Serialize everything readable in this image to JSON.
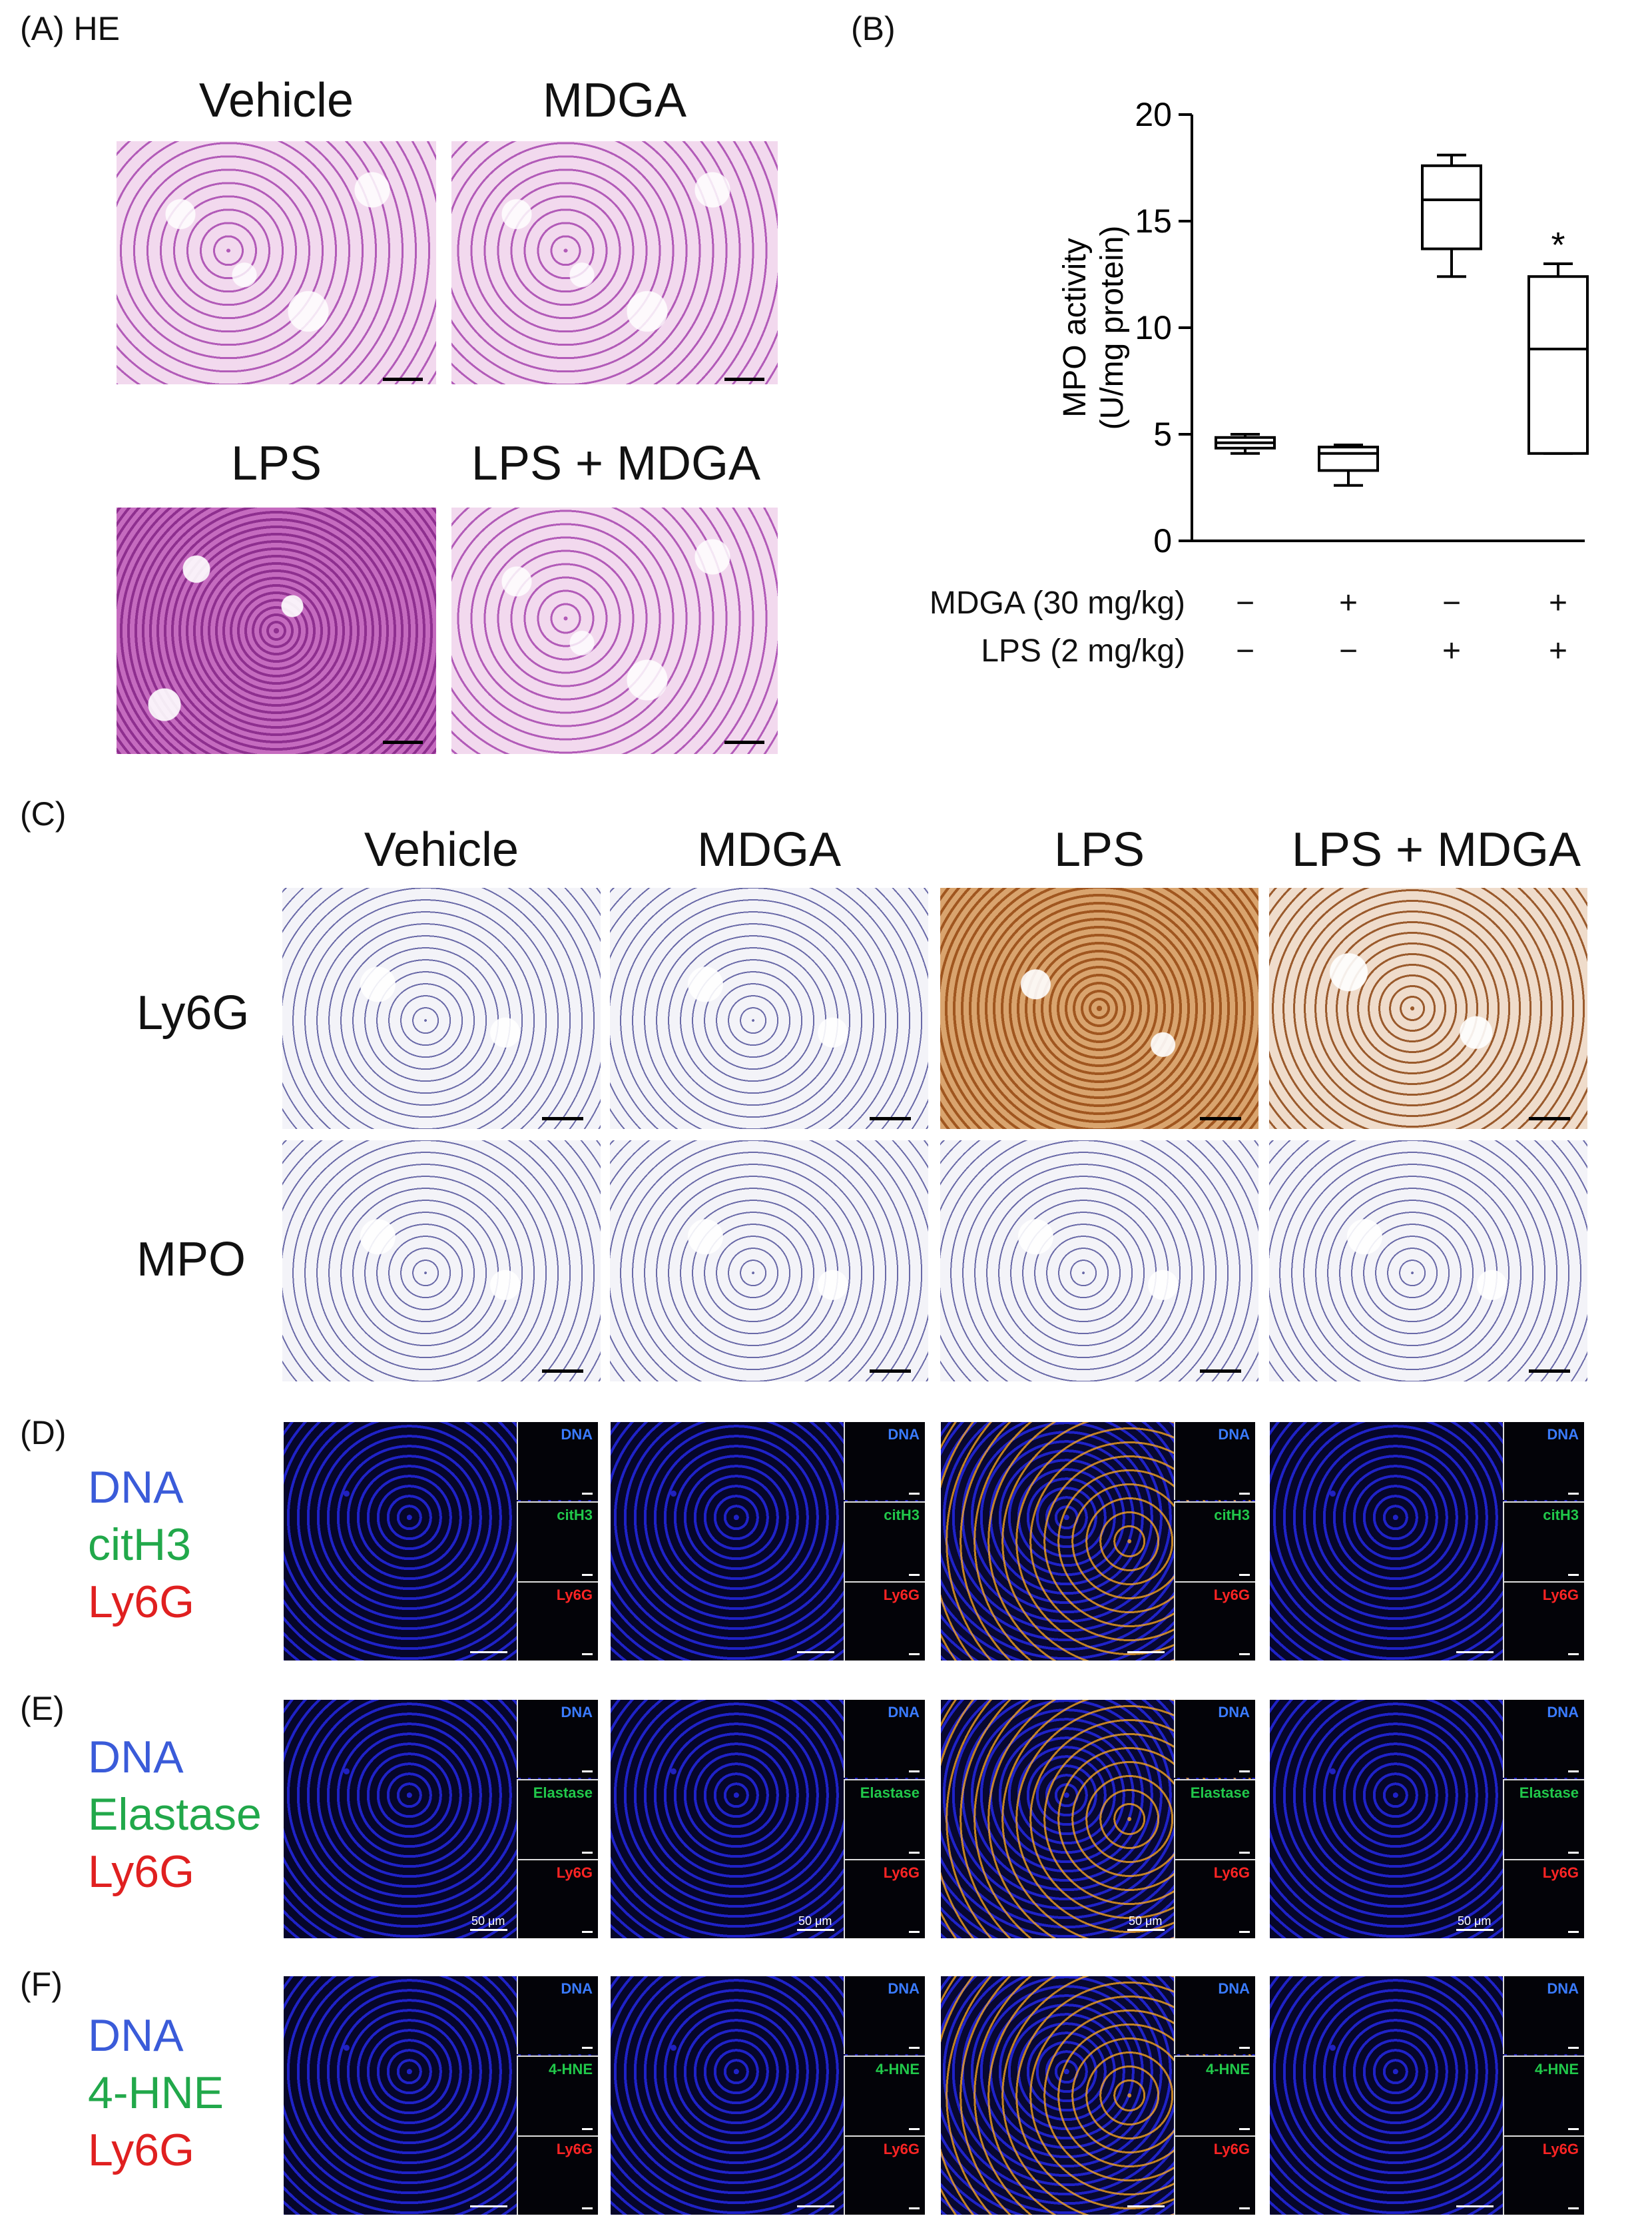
{
  "panels": {
    "a": {
      "label": "(A) HE",
      "titles": [
        "Vehicle",
        "MDGA",
        "LPS",
        "LPS + MDGA"
      ]
    },
    "b": {
      "label": "(B)",
      "treatments": [
        {
          "name": "MDGA (30 mg/kg)",
          "signs": [
            "−",
            "+",
            "−",
            "+"
          ]
        },
        {
          "name": "LPS (2 mg/kg)",
          "signs": [
            "−",
            "−",
            "+",
            "+"
          ]
        }
      ]
    },
    "c": {
      "label": "(C)",
      "columns": [
        "Vehicle",
        "MDGA",
        "LPS",
        "LPS + MDGA"
      ],
      "rows": [
        "Ly6G",
        "MPO"
      ]
    },
    "d": {
      "label": "(D)",
      "stains": [
        "DNA",
        "citH3",
        "Ly6G"
      ],
      "insets": [
        "DNA",
        "citH3",
        "Ly6G"
      ]
    },
    "e": {
      "label": "(E)",
      "stains": [
        "DNA",
        "Elastase",
        "Ly6G"
      ],
      "insets": [
        "DNA",
        "Elastase",
        "Ly6G"
      ],
      "scale_text": "50 μm"
    },
    "f": {
      "label": "(F)",
      "stains": [
        "DNA",
        "4-HNE",
        "Ly6G"
      ],
      "insets": [
        "DNA",
        "4-HNE",
        "Ly6G"
      ]
    }
  },
  "colors": {
    "dna": "#3a5bd9",
    "green": "#21a84a",
    "red": "#e02020"
  },
  "chart_data": {
    "type": "box",
    "ylabel": "MPO activity (U/mg protein)",
    "ylim": [
      0,
      20
    ],
    "yticks": [
      0,
      5,
      10,
      15,
      20
    ],
    "groups": [
      {
        "min": 4.1,
        "q1": 4.35,
        "median": 4.6,
        "q3": 4.85,
        "max": 5.0,
        "annotation": ""
      },
      {
        "min": 2.6,
        "q1": 3.3,
        "median": 4.1,
        "q3": 4.4,
        "max": 4.5,
        "annotation": ""
      },
      {
        "min": 12.4,
        "q1": 13.7,
        "median": 16.0,
        "q3": 17.6,
        "max": 18.1,
        "annotation": ""
      },
      {
        "min": 4.1,
        "q1": 4.1,
        "median": 9.0,
        "q3": 12.4,
        "max": 13.0,
        "annotation": "*"
      }
    ]
  }
}
